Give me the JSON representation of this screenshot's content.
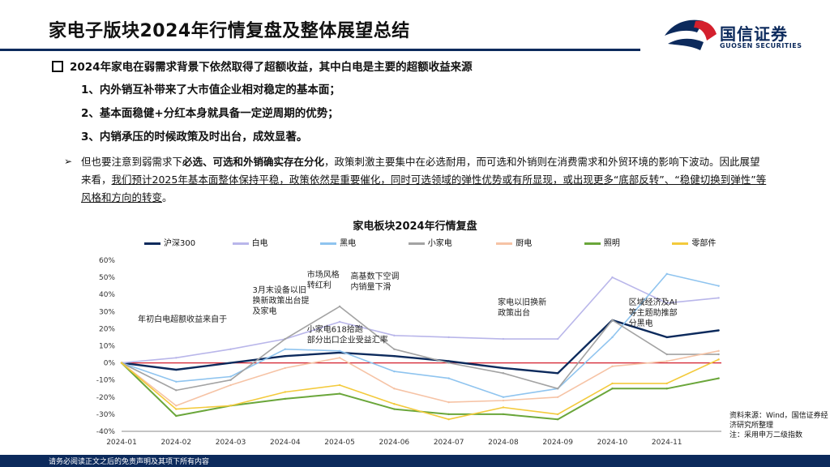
{
  "page": {
    "title": "家电子版块2024年行情复盘及整体展望总结",
    "logo_text": "国信证券",
    "logo_sub": "GUOSEN SECURITIES",
    "main_point": "2024年家电在弱需求背景下依然取得了超额收益，其中白电是主要的超额收益来源",
    "sub_points": [
      "1、内外销互补带来了大市值企业相对稳定的基本面；",
      "2、基本面稳健+分红本身就具备一定逆周期的优势；",
      "3、内销承压的时候政策及时出台，成效显著。"
    ],
    "para": {
      "p1": "但也要注意到弱需求下",
      "p1_bold": "必选、可选和外销确实存在分化",
      "p2": "，政策刺激主要集中在必选耐用，而可选和外销则在消费需求和外贸环境的影响下波动。因此展望来看，",
      "p2_underline": "我们预计2025年基本面整体保持平稳，政策依然是重要催化，同时可选领域的弹性优势或有所显现，或出现更多“底部反转”、“稳健切换到弹性”等风格和方向的转变",
      "p3": "。"
    },
    "source": "资料来源：Wind，国信证券经济研究所整理\n注：采用申万二级指数",
    "footer": "请务必阅读正文之后的免责声明及其项下所有内容"
  },
  "colors": {
    "navy": "#0c2a5c",
    "logo_red": "#d4202d"
  },
  "chart_data": {
    "type": "line",
    "title": "家电板块2024年行情复盘",
    "ylim": [
      -40,
      60
    ],
    "yticks": [
      "60%",
      "50%",
      "40%",
      "30%",
      "20%",
      "10%",
      "0%",
      "-10%",
      "-20%",
      "-30%",
      "-40%"
    ],
    "x_ticks": [
      "2024-01",
      "2024-02",
      "2024-03",
      "2024-04",
      "2024-05",
      "2024-06",
      "2024-07",
      "2024-08",
      "2024-09",
      "2024-10",
      "2024-11"
    ],
    "x_months": [
      0,
      1,
      2,
      3,
      4,
      5,
      6,
      7,
      8,
      9,
      10,
      10.95
    ],
    "series": [
      {
        "name": "沪深300",
        "color": "#0c2a5c",
        "width": 2.4,
        "values": [
          0,
          -4,
          0,
          4,
          6,
          4,
          1,
          -3,
          -6,
          25,
          15,
          19
        ]
      },
      {
        "name": "白电",
        "color": "#b9b6ea",
        "width": 1.6,
        "values": [
          0,
          3,
          8,
          14,
          24,
          16,
          15,
          14,
          14,
          50,
          35,
          38
        ]
      },
      {
        "name": "黑电",
        "color": "#8fc4ef",
        "width": 1.6,
        "values": [
          0,
          -11,
          -8,
          8,
          7,
          -5,
          -9,
          -20,
          -15,
          15,
          52,
          45
        ]
      },
      {
        "name": "小家电",
        "color": "#a3a3a3",
        "width": 1.6,
        "values": [
          0,
          -16,
          -10,
          14,
          33,
          8,
          0,
          -6,
          -15,
          25,
          5,
          5
        ]
      },
      {
        "name": "厨电",
        "color": "#f6c3a5",
        "width": 1.6,
        "values": [
          0,
          -25,
          -13,
          -3,
          3,
          -15,
          -23,
          -22,
          -20,
          -2,
          1,
          7
        ]
      },
      {
        "name": "照明",
        "color": "#6aa63a",
        "width": 2.0,
        "values": [
          0,
          -31,
          -25,
          -21,
          -18,
          -27,
          -30,
          -30,
          -33,
          -15,
          -15,
          -9
        ]
      },
      {
        "name": "零部件",
        "color": "#f3ca3c",
        "width": 1.6,
        "values": [
          0,
          -27,
          -25,
          -17,
          -13,
          -24,
          -33,
          -26,
          -30,
          -12,
          -12,
          2
        ]
      }
    ],
    "annotations": [
      {
        "lines": [
          "年初白电超额收益来自于"
        ],
        "x": 0.3,
        "y": 24
      },
      {
        "lines": [
          "3月末设备以旧",
          "换新政策出台提",
          "及家电"
        ],
        "x": 2.4,
        "y": 41
      },
      {
        "lines": [
          "市场风格",
          "转红利"
        ],
        "x": 3.4,
        "y": 50
      },
      {
        "lines": [
          "高基数下空调",
          "内销量下滑"
        ],
        "x": 4.2,
        "y": 49
      },
      {
        "lines": [
          "小家电618拾跑",
          "部分出口企业受益汇率"
        ],
        "x": 3.4,
        "y": 18
      },
      {
        "lines": [
          "家电以旧换新",
          "政策出台"
        ],
        "x": 6.9,
        "y": 34
      },
      {
        "lines": [
          "区域经济及AI",
          "等主题助推部",
          "分黑电"
        ],
        "x": 9.3,
        "y": 34
      }
    ]
  }
}
